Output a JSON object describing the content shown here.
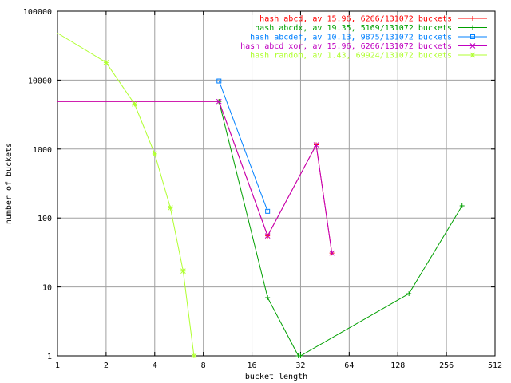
{
  "chart_data": {
    "type": "line",
    "title": "",
    "xlabel": "bucket length",
    "ylabel": "number of buckets",
    "x_scale": "log2",
    "y_scale": "log10",
    "xlim": [
      1,
      512
    ],
    "ylim": [
      1,
      100000
    ],
    "grid": true,
    "legend_position": "top-right",
    "x_ticks": [
      1,
      2,
      4,
      8,
      16,
      32,
      64,
      128,
      256,
      512
    ],
    "x_tick_labels": [
      "1",
      "2",
      "4",
      "8",
      "16",
      "32",
      "64",
      "128",
      "256",
      "512"
    ],
    "y_ticks": [
      1,
      10,
      100,
      1000,
      10000,
      100000
    ],
    "y_tick_labels": [
      "1",
      "10",
      "100",
      "1000",
      "10000",
      "100000"
    ],
    "series": [
      {
        "name": "hash abcd, av 15.96, 6266/131072 buckets",
        "color": "#ff0000",
        "marker": "plus",
        "x": [
          1,
          10,
          20,
          40,
          50
        ],
        "y": [
          4900,
          4900,
          55,
          1150,
          31
        ]
      },
      {
        "name": "hash abcdx, av 19.35, 5169/131072 buckets",
        "color": "#00a000",
        "marker": "cross",
        "x": [
          10,
          20,
          31,
          32,
          150,
          320
        ],
        "y": [
          4900,
          7,
          1,
          1,
          8,
          150
        ]
      },
      {
        "name": "hash abcdef, av 10.13, 9875/131072 buckets",
        "color": "#0080ff",
        "marker": "square",
        "x": [
          1,
          10,
          20
        ],
        "y": [
          9700,
          9700,
          125
        ]
      },
      {
        "name": "hash abcd xor, av 15.96, 6266/131072 buckets",
        "color": "#c000c0",
        "marker": "x",
        "x": [
          1,
          10,
          20,
          40,
          50
        ],
        "y": [
          4900,
          4900,
          55,
          1150,
          31
        ]
      },
      {
        "name": "hash random, av 1.43, 69924/131072 buckets",
        "color": "#b0ff30",
        "marker": "star",
        "x": [
          1,
          2,
          3,
          4,
          5,
          6,
          7
        ],
        "y": [
          48000,
          18000,
          4500,
          850,
          140,
          17,
          1
        ]
      }
    ]
  }
}
